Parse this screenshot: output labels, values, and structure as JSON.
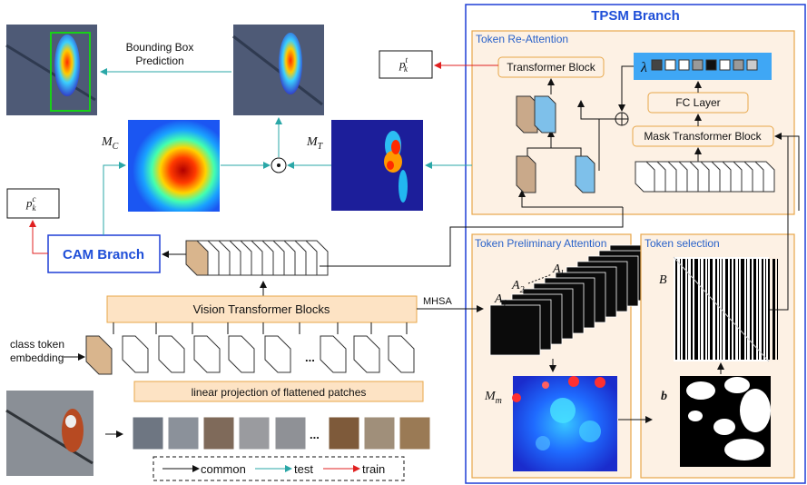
{
  "top": {
    "bbox_prediction": "Bounding Box\nPrediction",
    "pk_t": "p",
    "pk_t_sub": "k",
    "pk_t_sup": "t",
    "pk_c": "p",
    "pk_c_sub": "k",
    "pk_c_sup": "c",
    "mc": "M",
    "mc_sub": "C",
    "mt": "M",
    "mt_sub": "T",
    "odot": "⊙"
  },
  "cam": {
    "label": "CAM Branch"
  },
  "vit": {
    "blocks": "Vision Transformer Blocks",
    "mhsa": "MHSA",
    "class_token": "class token\nembedding",
    "linear": "linear projection of flattened patches",
    "dots": "..."
  },
  "legend": {
    "common": "common",
    "test": "test",
    "train": "train"
  },
  "tpsm": {
    "title": "TPSM Branch",
    "re_attention": "Token Re-Attention",
    "transformer_block": "Transformer Block",
    "fc_layer": "FC Layer",
    "mask_transformer": "Mask Transformer Block",
    "lambda": "λ",
    "lambda_cells": [
      "#444444",
      "#ffffff",
      "#ffffff",
      "#9a9a9a",
      "#111111",
      "#ffffff",
      "#9a9a9a",
      "#cccccc"
    ],
    "preliminary": "Token Preliminary Attention",
    "selection": "Token selection",
    "A1": "A",
    "A1_sub": "1",
    "A2": "A",
    "A2_sub": "2",
    "Al": "A",
    "Al_sub": "l",
    "Mm": "M",
    "Mm_sub": "m",
    "B": "B",
    "b": "b"
  },
  "colors": {
    "tpsm_border": "#1f3fd6",
    "panel_fill": "#fdf1e4",
    "panel_border": "#e8a74a",
    "test_arrow": "#2aa7a7",
    "train_arrow": "#e02020",
    "cam_text": "#1f4fd8"
  }
}
